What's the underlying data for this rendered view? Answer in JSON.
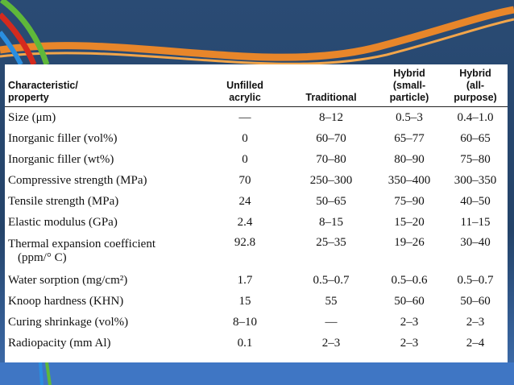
{
  "table": {
    "headers": [
      "Characteristic/ property",
      "Unfilled acrylic",
      "Traditional",
      "Hybrid (small- particle)",
      "Hybrid (all- purpose)"
    ],
    "header_lines": [
      [
        "Characteristic/",
        "property"
      ],
      [
        "Unfilled",
        "acrylic"
      ],
      [
        "Traditional"
      ],
      [
        "Hybrid",
        "(small-",
        "particle)"
      ],
      [
        "Hybrid",
        "(all-",
        "purpose)"
      ]
    ],
    "rows": [
      {
        "property": "Size (μm)",
        "values": [
          "—",
          "8–12",
          "0.5–3",
          "0.4–1.0"
        ]
      },
      {
        "property": "Inorganic filler (vol%)",
        "values": [
          "0",
          "60–70",
          "65–77",
          "60–65"
        ]
      },
      {
        "property": "Inorganic filler (wt%)",
        "values": [
          "0",
          "70–80",
          "80–90",
          "75–80"
        ]
      },
      {
        "property": "Compressive strength (MPa)",
        "values": [
          "70",
          "250–300",
          "350–400",
          "300–350"
        ]
      },
      {
        "property": "Tensile strength (MPa)",
        "values": [
          "24",
          "50–65",
          "75–90",
          "40–50"
        ]
      },
      {
        "property": "Elastic modulus (GPa)",
        "values": [
          "2.4",
          "8–15",
          "15–20",
          "11–15"
        ]
      },
      {
        "property": "Thermal expansion coefficient",
        "property_line2": "(ppm/° C)",
        "values": [
          "92.8",
          "25–35",
          "19–26",
          "30–40"
        ]
      },
      {
        "property": "Water sorption (mg/cm²)",
        "values": [
          "1.7",
          "0.5–0.7",
          "0.5–0.6",
          "0.5–0.7"
        ]
      },
      {
        "property": "Knoop hardness (KHN)",
        "values": [
          "15",
          "55",
          "50–60",
          "50–60"
        ]
      },
      {
        "property": "Curing shrinkage (vol%)",
        "values": [
          "8–10",
          "—",
          "2–3",
          "2–3"
        ]
      },
      {
        "property": "Radiopacity (mm Al)",
        "values": [
          "0.1",
          "2–3",
          "2–3",
          "2–4"
        ]
      }
    ]
  },
  "colors": {
    "background": "#25456b",
    "accent_orange": "#e8862a",
    "accent_green": "#5fb83a",
    "accent_red": "#d42a1e",
    "accent_blue": "#2a8ee0",
    "bottom_band": "#3f76c4"
  }
}
